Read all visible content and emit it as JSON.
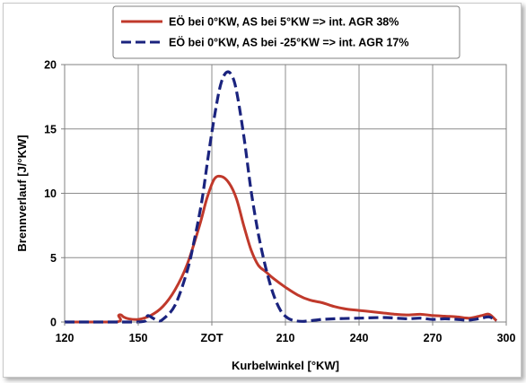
{
  "chart_data": {
    "type": "line",
    "xlabel": "Kurbelwinkel [°KW]",
    "ylabel": "Brennverlauf [J/°KW]",
    "xlim": [
      120,
      300
    ],
    "ylim": [
      0,
      20
    ],
    "x_ticks": [
      120,
      150,
      180,
      210,
      240,
      270,
      300
    ],
    "x_tick_labels": [
      "120",
      "150",
      "ZOT",
      "210",
      "240",
      "270",
      "300"
    ],
    "y_ticks": [
      0,
      5,
      10,
      15,
      20
    ],
    "y_tick_labels": [
      "0",
      "5",
      "10",
      "15",
      "20"
    ],
    "grid": true,
    "legend_position": "top",
    "series": [
      {
        "name": "EÖ bei 0°KW, AS bei 5°KW => int. AGR 38%",
        "color": "#c0392b",
        "style": "solid",
        "x": [
          120,
          141,
          142,
          143,
          144,
          146,
          150,
          155,
          160,
          165,
          170,
          175,
          178,
          181,
          184,
          187,
          190,
          193,
          196,
          199,
          202,
          205,
          210,
          215,
          220,
          225,
          230,
          235,
          240,
          245,
          250,
          255,
          260,
          265,
          270,
          275,
          280,
          285,
          290,
          293,
          296
        ],
        "y": [
          0,
          0,
          0.5,
          0.55,
          0.4,
          0.25,
          0.2,
          0.5,
          1.2,
          2.5,
          4.5,
          7.5,
          9.6,
          11.1,
          11.3,
          10.8,
          9.6,
          7.5,
          5.6,
          4.4,
          3.9,
          3.4,
          2.7,
          2.1,
          1.7,
          1.5,
          1.2,
          1.0,
          0.9,
          0.8,
          0.7,
          0.6,
          0.55,
          0.6,
          0.5,
          0.45,
          0.4,
          0.3,
          0.5,
          0.6,
          0.1
        ]
      },
      {
        "name": "EÖ bei 0°KW, AS bei -25°KW => int. AGR 17%",
        "color": "#1a237e",
        "style": "dashed",
        "x": [
          120,
          150,
          153,
          154,
          156,
          158,
          160,
          165,
          170,
          173,
          176,
          179,
          182,
          184,
          186,
          188,
          190,
          193,
          196,
          199,
          202,
          205,
          208,
          211,
          214,
          217,
          220,
          225,
          230,
          240,
          250,
          255,
          260,
          265,
          270,
          275,
          280,
          285,
          290,
          293,
          296
        ],
        "y": [
          0,
          0,
          0.3,
          0.5,
          0.3,
          0.1,
          0.2,
          1.3,
          4.0,
          6.5,
          9.5,
          13.5,
          17.0,
          18.7,
          19.4,
          19.2,
          18.0,
          14.5,
          10.2,
          6.8,
          4.2,
          2.2,
          0.9,
          0.3,
          0.1,
          0.05,
          0.1,
          0.2,
          0.25,
          0.3,
          0.35,
          0.3,
          0.25,
          0.3,
          0.2,
          0.25,
          0.2,
          0.15,
          0.3,
          0.4,
          0.1
        ]
      }
    ]
  }
}
